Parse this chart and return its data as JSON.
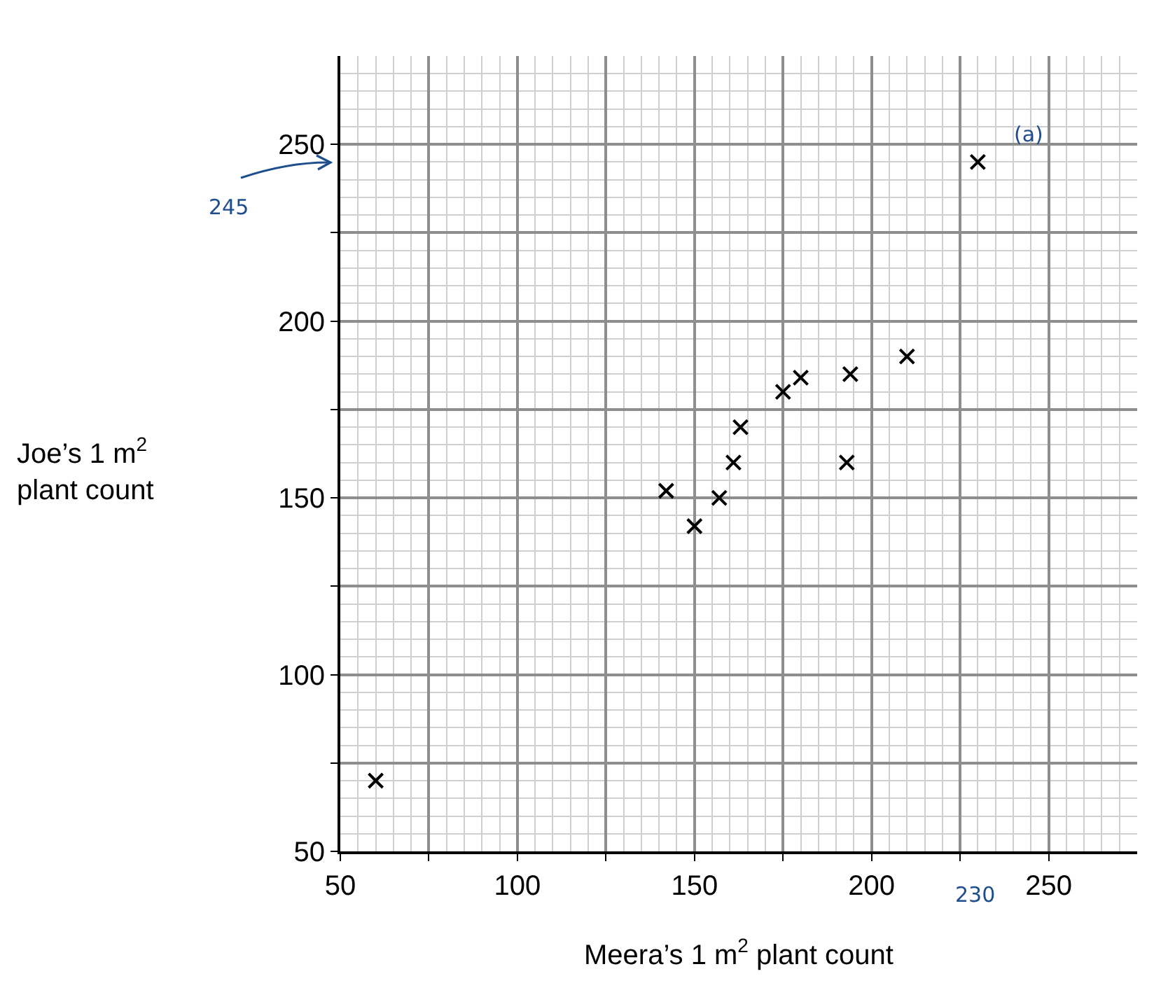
{
  "chart_data": {
    "type": "scatter",
    "xlabel": "Meera’s 1 m$^{2}$ plant count",
    "ylabel": "Joe’s 1 m$^{2}$\nplant count",
    "x": [
      60,
      142,
      150,
      157,
      161,
      163,
      175,
      180,
      194,
      193,
      210,
      230
    ],
    "values": [
      70,
      152,
      142,
      150,
      160,
      170,
      180,
      184,
      185,
      160,
      190,
      245
    ],
    "color": "#000000",
    "marker": "cross",
    "xlim": [
      50,
      275
    ],
    "ylim": [
      50,
      275
    ],
    "xticks": [
      50,
      {
        "value": 75,
        "label": null
      },
      100,
      {
        "value": 125,
        "label": null
      },
      150,
      {
        "value": 175,
        "label": null
      },
      200,
      {
        "value": 225,
        "label": null
      },
      250
    ],
    "yticks": [
      50,
      {
        "value": 75,
        "label": null
      },
      100,
      {
        "value": 125,
        "label": null
      },
      150,
      {
        "value": 175,
        "label": null
      },
      200,
      {
        "value": 225,
        "label": null
      },
      250
    ],
    "grid": true,
    "annotations": [
      {
        "text": "(a)",
        "x": 230,
        "y": 245
      },
      "245",
      "230"
    ]
  }
}
